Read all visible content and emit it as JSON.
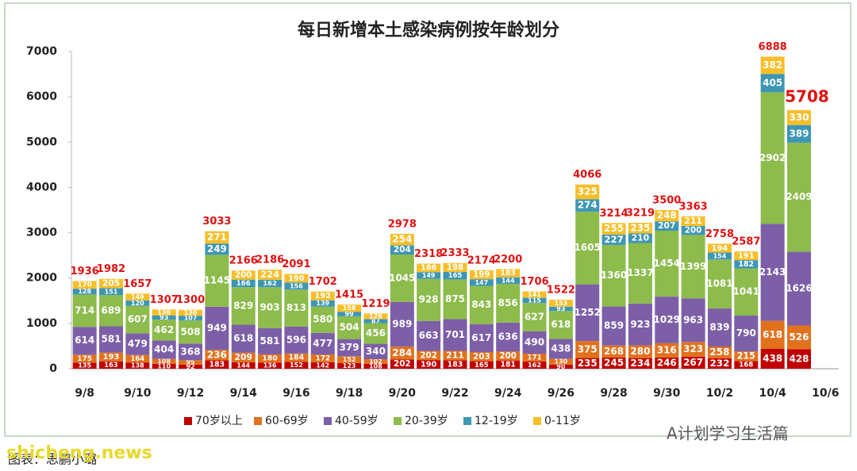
{
  "chart_data": {
    "type": "stacked_bar",
    "title": "每日新增本土感染病例按年龄划分",
    "categories": [
      "9/8",
      null,
      "9/10",
      null,
      "9/12",
      null,
      "9/14",
      null,
      "9/16",
      null,
      "9/18",
      null,
      "9/20",
      null,
      "9/22",
      null,
      "9/24",
      null,
      "9/26",
      null,
      "9/28",
      null,
      "9/30",
      null,
      "10/2",
      null,
      "10/4",
      null,
      "10/6"
    ],
    "series": [
      {
        "name": "70岁以上",
        "color": "#c00000",
        "values": [
          135,
          163,
          138,
          110,
          92,
          183,
          144,
          136,
          152,
          142,
          123,
          108,
          202,
          190,
          183,
          165,
          181,
          162,
          90,
          235,
          245,
          234,
          246,
          267,
          232,
          168,
          438,
          428,
          null
        ]
      },
      {
        "name": "60-69岁",
        "color": "#e2711d",
        "values": [
          175,
          193,
          164,
          108,
          95,
          236,
          209,
          180,
          184,
          172,
          152,
          102,
          284,
          202,
          211,
          203,
          200,
          171,
          130,
          375,
          268,
          280,
          316,
          323,
          258,
          215,
          618,
          526,
          null
        ]
      },
      {
        "name": "40-59岁",
        "color": "#7d5fa8",
        "values": [
          614,
          581,
          479,
          404,
          368,
          949,
          618,
          581,
          596,
          477,
          379,
          340,
          989,
          663,
          701,
          617,
          636,
          490,
          438,
          1252,
          859,
          923,
          1029,
          963,
          839,
          790,
          2143,
          1626,
          null
        ]
      },
      {
        "name": "20-39岁",
        "color": "#8dbb4c",
        "values": [
          714,
          689,
          607,
          462,
          508,
          1145,
          829,
          903,
          813,
          580,
          504,
          456,
          1045,
          928,
          875,
          843,
          856,
          627,
          618,
          1605,
          1360,
          1337,
          1454,
          1399,
          1081,
          1041,
          2902,
          2409,
          null
        ]
      },
      {
        "name": "12-19岁",
        "color": "#3d96b4",
        "values": [
          128,
          151,
          120,
          93,
          107,
          249,
          166,
          162,
          156,
          139,
          99,
          87,
          204,
          149,
          165,
          147,
          144,
          115,
          93,
          274,
          227,
          210,
          207,
          200,
          154,
          182,
          405,
          389,
          null
        ]
      },
      {
        "name": "0-11岁",
        "color": "#f6bf2a",
        "values": [
          170,
          205,
          149,
          130,
          130,
          271,
          200,
          224,
          190,
          192,
          158,
          126,
          254,
          186,
          198,
          199,
          183,
          141,
          153,
          325,
          255,
          235,
          248,
          211,
          194,
          191,
          382,
          330,
          null
        ]
      }
    ],
    "totals": [
      1936,
      1982,
      1657,
      1307,
      1300,
      3033,
      2166,
      2186,
      2091,
      1702,
      1415,
      1219,
      2978,
      2318,
      2333,
      2174,
      2200,
      1706,
      1522,
      4066,
      3214,
      3219,
      3500,
      3363,
      2758,
      2587,
      6888,
      5708,
      null
    ],
    "ylim": [
      0,
      7000
    ],
    "yticks": [
      0,
      1000,
      2000,
      3000,
      4000,
      5000,
      6000,
      7000
    ],
    "grid": false,
    "legend": "bottom",
    "annotations": [
      "图表：思鹏小璐",
      "A计划学习生活篇",
      "shicheng.news"
    ]
  }
}
